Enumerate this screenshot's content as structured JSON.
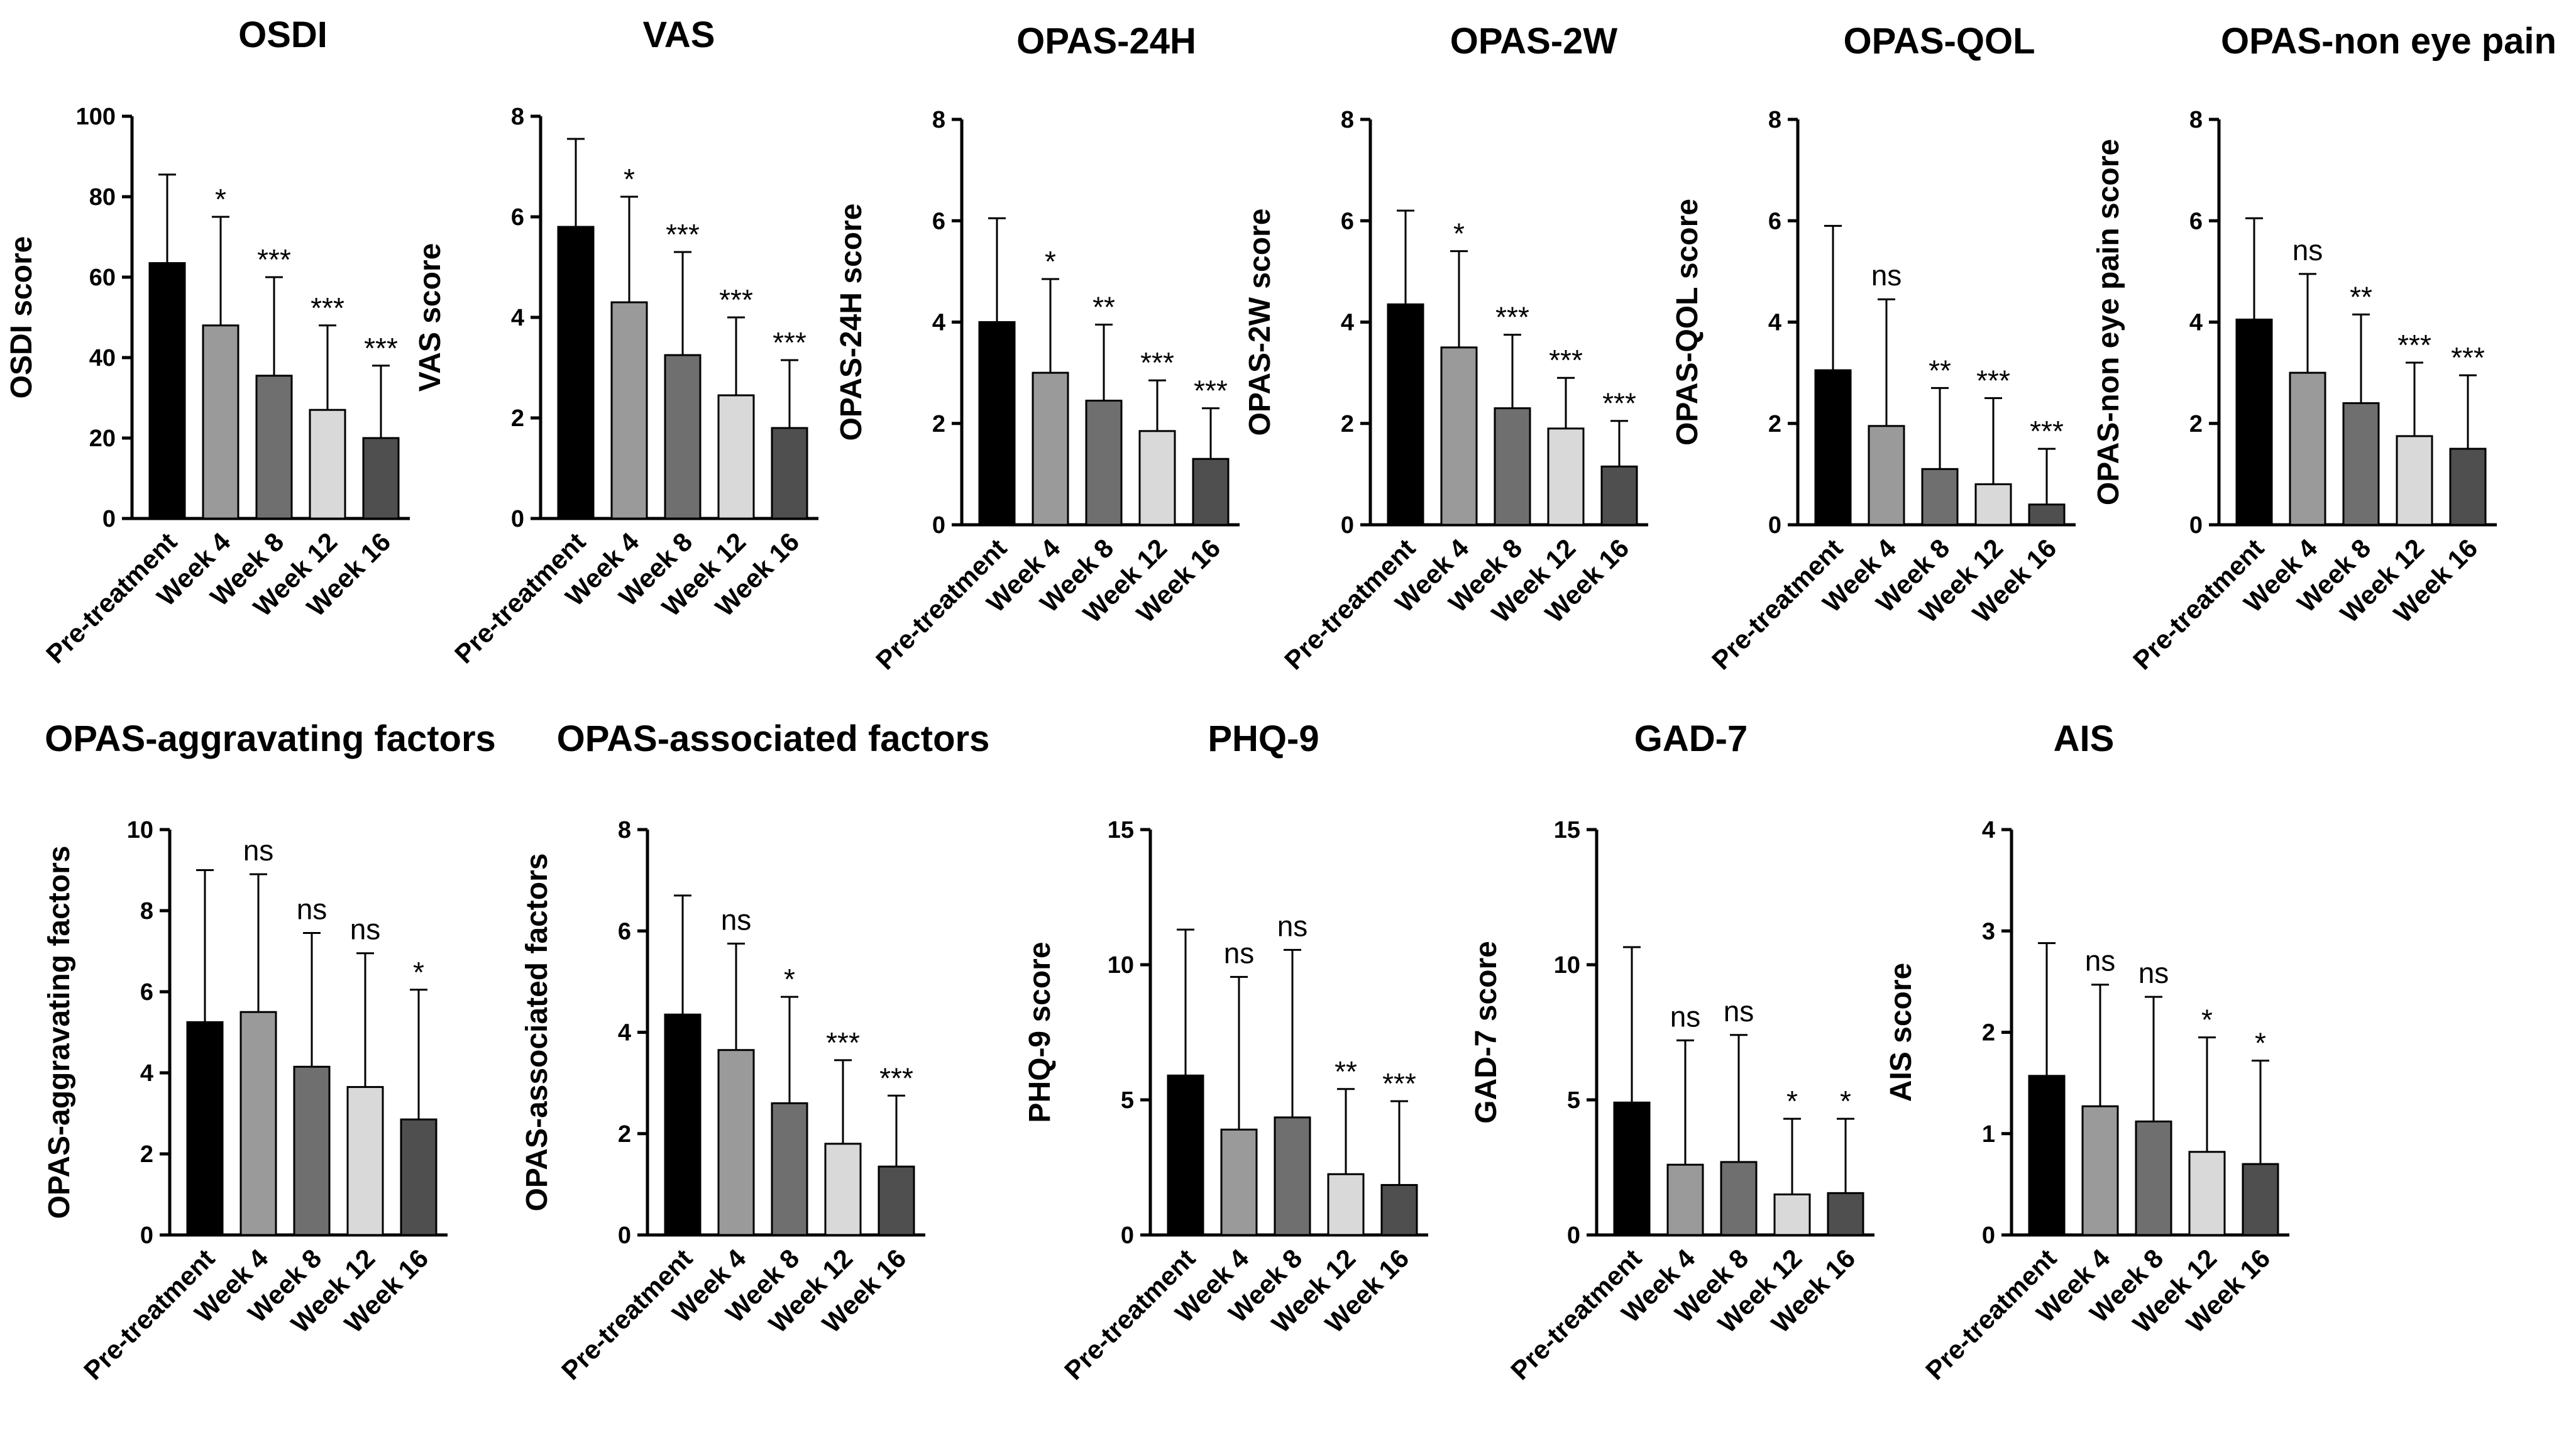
{
  "colors": {
    "bars": [
      "#000000",
      "#9a9a9a",
      "#6f6f6f",
      "#d9d9d9",
      "#4f4f4f"
    ],
    "axis": "#000000"
  },
  "chart_data": [
    {
      "type": "bar",
      "title": "OSDI",
      "ylabel": "OSDI score",
      "categories": [
        "Pre-treatment",
        "Week 4",
        "Week 8",
        "Week 12",
        "Week 16"
      ],
      "values": [
        63.5,
        48,
        35.5,
        27,
        20
      ],
      "error_upper": [
        85.5,
        75,
        60,
        48,
        38
      ],
      "significance": [
        "",
        "*",
        "***",
        "***",
        "***"
      ],
      "yticks": [
        0,
        20,
        40,
        60,
        80,
        100
      ],
      "ylim": [
        0,
        100
      ]
    },
    {
      "type": "bar",
      "title": "VAS",
      "ylabel": "VAS score",
      "categories": [
        "Pre-treatment",
        "Week 4",
        "Week 8",
        "Week 12",
        "Week 16"
      ],
      "values": [
        5.8,
        4.3,
        3.25,
        2.45,
        1.8
      ],
      "error_upper": [
        7.55,
        6.4,
        5.3,
        4.0,
        3.15
      ],
      "significance": [
        "",
        "*",
        "***",
        "***",
        "***"
      ],
      "yticks": [
        0,
        2,
        4,
        6,
        8
      ],
      "ylim": [
        0,
        8
      ]
    },
    {
      "type": "bar",
      "title": "OPAS-24H",
      "ylabel": "OPAS-24H score",
      "categories": [
        "Pre-treatment",
        "Week 4",
        "Week 8",
        "Week 12",
        "Week 16"
      ],
      "values": [
        4.0,
        3.0,
        2.45,
        1.85,
        1.3
      ],
      "error_upper": [
        6.05,
        4.85,
        3.95,
        2.85,
        2.3
      ],
      "significance": [
        "",
        "*",
        "**",
        "***",
        "***"
      ],
      "yticks": [
        0,
        2,
        4,
        6,
        8
      ],
      "ylim": [
        0,
        8
      ]
    },
    {
      "type": "bar",
      "title": "OPAS-2W",
      "ylabel": "OPAS-2W score",
      "categories": [
        "Pre-treatment",
        "Week 4",
        "Week 8",
        "Week 12",
        "Week 16"
      ],
      "values": [
        4.35,
        3.5,
        2.3,
        1.9,
        1.15
      ],
      "error_upper": [
        6.2,
        5.4,
        3.75,
        2.9,
        2.05
      ],
      "significance": [
        "",
        "*",
        "***",
        "***",
        "***"
      ],
      "yticks": [
        0,
        2,
        4,
        6,
        8
      ],
      "ylim": [
        0,
        8
      ]
    },
    {
      "type": "bar",
      "title": "OPAS-QOL",
      "ylabel": "OPAS-QOL score",
      "categories": [
        "Pre-treatment",
        "Week 4",
        "Week 8",
        "Week 12",
        "Week 16"
      ],
      "values": [
        3.05,
        1.95,
        1.1,
        0.8,
        0.4
      ],
      "error_upper": [
        5.9,
        4.45,
        2.7,
        2.5,
        1.5
      ],
      "significance": [
        "",
        "ns",
        "**",
        "***",
        "***"
      ],
      "yticks": [
        0,
        2,
        4,
        6,
        8
      ],
      "ylim": [
        0,
        8
      ]
    },
    {
      "type": "bar",
      "title": "OPAS-non eye pain",
      "ylabel": "OPAS-non eye pain score",
      "categories": [
        "Pre-treatment",
        "Week 4",
        "Week 8",
        "Week 12",
        "Week 16"
      ],
      "values": [
        4.05,
        3.0,
        2.4,
        1.75,
        1.5
      ],
      "error_upper": [
        6.05,
        4.95,
        4.15,
        3.2,
        2.95
      ],
      "significance": [
        "",
        "ns",
        "**",
        "***",
        "***"
      ],
      "yticks": [
        0,
        2,
        4,
        6,
        8
      ],
      "ylim": [
        0,
        8
      ]
    },
    {
      "type": "bar",
      "title": "OPAS-aggravating factors",
      "ylabel": "OPAS-aggravating factors",
      "categories": [
        "Pre-treatment",
        "Week 4",
        "Week 8",
        "Week 12",
        "Week 16"
      ],
      "values": [
        5.25,
        5.5,
        4.15,
        3.65,
        2.85
      ],
      "error_upper": [
        9.0,
        8.9,
        7.45,
        6.95,
        6.05
      ],
      "significance": [
        "",
        "ns",
        "ns",
        "ns",
        "*"
      ],
      "yticks": [
        0,
        2,
        4,
        6,
        8,
        10
      ],
      "ylim": [
        0,
        10
      ]
    },
    {
      "type": "bar",
      "title": "OPAS-associated factors",
      "ylabel": "OPAS-associated factors",
      "categories": [
        "Pre-treatment",
        "Week 4",
        "Week 8",
        "Week 12",
        "Week 16"
      ],
      "values": [
        4.35,
        3.65,
        2.6,
        1.8,
        1.35
      ],
      "error_upper": [
        6.7,
        5.75,
        4.7,
        3.45,
        2.75
      ],
      "significance": [
        "",
        "ns",
        "*",
        "***",
        "***"
      ],
      "yticks": [
        0,
        2,
        4,
        6,
        8
      ],
      "ylim": [
        0,
        8
      ]
    },
    {
      "type": "bar",
      "title": "PHQ-9",
      "ylabel": "PHQ-9 score",
      "categories": [
        "Pre-treatment",
        "Week 4",
        "Week 8",
        "Week 12",
        "Week 16"
      ],
      "values": [
        5.9,
        3.9,
        4.35,
        2.25,
        1.85
      ],
      "error_upper": [
        11.3,
        9.55,
        10.55,
        5.4,
        4.95
      ],
      "significance": [
        "",
        "ns",
        "ns",
        "**",
        "***"
      ],
      "yticks": [
        0,
        5,
        10,
        15
      ],
      "ylim": [
        0,
        15
      ]
    },
    {
      "type": "bar",
      "title": "GAD-7",
      "ylabel": "GAD-7 score",
      "categories": [
        "Pre-treatment",
        "Week 4",
        "Week 8",
        "Week 12",
        "Week 16"
      ],
      "values": [
        4.9,
        2.6,
        2.7,
        1.5,
        1.55
      ],
      "error_upper": [
        10.65,
        7.2,
        7.4,
        4.3,
        4.3
      ],
      "significance": [
        "",
        "ns",
        "ns",
        "*",
        "*"
      ],
      "yticks": [
        0,
        5,
        10,
        15
      ],
      "ylim": [
        0,
        15
      ]
    },
    {
      "type": "bar",
      "title": "AIS",
      "ylabel": "AIS score",
      "categories": [
        "Pre-treatment",
        "Week 4",
        "Week 8",
        "Week 12",
        "Week 16"
      ],
      "values": [
        1.57,
        1.27,
        1.12,
        0.82,
        0.7
      ],
      "error_upper": [
        2.88,
        2.47,
        2.35,
        1.95,
        1.72
      ],
      "significance": [
        "",
        "ns",
        "ns",
        "*",
        "*"
      ],
      "yticks": [
        0,
        1,
        2,
        3,
        4
      ],
      "ylim": [
        0,
        4
      ]
    }
  ]
}
